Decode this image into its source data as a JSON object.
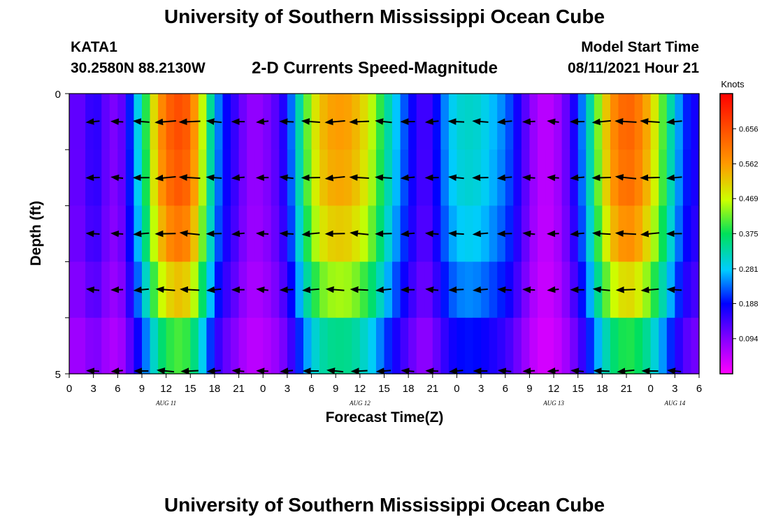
{
  "main_title": "University of Southern Mississippi Ocean Cube",
  "footer_title": "University of Southern Mississippi Ocean Cube",
  "station": {
    "id": "KATA1",
    "coords": "30.2580N  88.2130W"
  },
  "model": {
    "start_label": "Model Start Time",
    "start_value": "08/11/2021 Hour 21"
  },
  "chart_data": {
    "type": "heatmap",
    "title": "2-D Currents Speed-Magnitude",
    "xlabel": "Forecast Time(Z)",
    "ylabel": "Depth (ft)",
    "colorbar_label": "Knots",
    "xlim": [
      0,
      78
    ],
    "ylim": [
      5,
      0
    ],
    "x_tick_labels": [
      "0",
      "3",
      "6",
      "9",
      "12",
      "15",
      "18",
      "21",
      "0",
      "3",
      "6",
      "9",
      "12",
      "15",
      "18",
      "21",
      "0",
      "3",
      "6",
      "9",
      "12",
      "15",
      "18",
      "21",
      "0",
      "3",
      "6"
    ],
    "y_tick_labels": [
      "0",
      "5"
    ],
    "date_labels": [
      {
        "text": "AUG 11",
        "x": 12
      },
      {
        "text": "AUG 12",
        "x": 36
      },
      {
        "text": "AUG 13",
        "x": 60
      },
      {
        "text": "AUG 14",
        "x": 75
      }
    ],
    "colorbar_ticks": [
      "0.656",
      "0.562",
      "0.469",
      "0.375",
      "0.281",
      "0.188",
      "0.094"
    ],
    "colorbar_tick_values": [
      0.656,
      0.562,
      0.469,
      0.375,
      0.281,
      0.188,
      0.094
    ],
    "color_range": [
      0.0,
      0.75
    ],
    "depth_layers": 5,
    "time_step_hours": 1,
    "speed_profiles": [
      [
        0,
        0.12
      ],
      [
        2,
        0.12
      ],
      [
        3,
        0.18
      ],
      [
        4,
        0.13
      ],
      [
        6,
        0.09
      ],
      [
        7,
        0.15
      ],
      [
        8,
        0.25
      ],
      [
        9,
        0.33
      ],
      [
        10,
        0.45
      ],
      [
        11,
        0.55
      ],
      [
        12,
        0.62
      ],
      [
        13,
        0.65
      ],
      [
        14,
        0.66
      ],
      [
        15,
        0.62
      ],
      [
        16,
        0.52
      ],
      [
        17,
        0.4
      ],
      [
        18,
        0.28
      ],
      [
        19,
        0.2
      ],
      [
        20,
        0.17
      ],
      [
        21,
        0.13
      ],
      [
        22,
        0.09
      ],
      [
        23,
        0.08
      ],
      [
        24,
        0.09
      ],
      [
        25,
        0.11
      ],
      [
        26,
        0.14
      ],
      [
        27,
        0.19
      ],
      [
        28,
        0.28
      ],
      [
        29,
        0.38
      ],
      [
        30,
        0.46
      ],
      [
        31,
        0.52
      ],
      [
        32,
        0.55
      ],
      [
        33,
        0.56
      ],
      [
        34,
        0.56
      ],
      [
        35,
        0.55
      ],
      [
        36,
        0.52
      ],
      [
        37,
        0.48
      ],
      [
        38,
        0.43
      ],
      [
        39,
        0.36
      ],
      [
        40,
        0.3
      ],
      [
        41,
        0.25
      ],
      [
        42,
        0.2
      ],
      [
        43,
        0.16
      ],
      [
        44,
        0.13
      ],
      [
        45,
        0.16
      ],
      [
        46,
        0.22
      ],
      [
        47,
        0.27
      ],
      [
        48,
        0.3
      ],
      [
        49,
        0.31
      ],
      [
        50,
        0.31
      ],
      [
        51,
        0.3
      ],
      [
        52,
        0.28
      ],
      [
        53,
        0.26
      ],
      [
        54,
        0.24
      ],
      [
        55,
        0.2
      ],
      [
        56,
        0.15
      ],
      [
        57,
        0.1
      ],
      [
        58,
        0.06
      ],
      [
        59,
        0.05
      ],
      [
        60,
        0.06
      ],
      [
        61,
        0.09
      ],
      [
        62,
        0.14
      ],
      [
        63,
        0.2
      ],
      [
        64,
        0.28
      ],
      [
        65,
        0.38
      ],
      [
        66,
        0.48
      ],
      [
        67,
        0.56
      ],
      [
        68,
        0.61
      ],
      [
        69,
        0.63
      ],
      [
        70,
        0.62
      ],
      [
        71,
        0.58
      ],
      [
        72,
        0.52
      ],
      [
        73,
        0.45
      ],
      [
        74,
        0.37
      ],
      [
        75,
        0.29
      ],
      [
        76,
        0.22
      ],
      [
        77,
        0.18
      ],
      [
        78,
        0.17
      ]
    ],
    "depth_factors": [
      1.0,
      0.98,
      0.92,
      0.8,
      0.62
    ],
    "vectors_shown": "arrows every 3 hours at each depth layer"
  }
}
